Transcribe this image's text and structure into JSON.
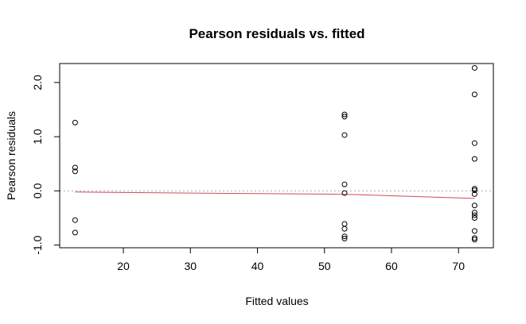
{
  "chart_data": {
    "type": "scatter",
    "title": "Pearson residuals vs. fitted",
    "xlabel": "Fitted values",
    "ylabel": "Pearson residuals",
    "xlim": [
      10.5,
      75.2
    ],
    "ylim": [
      -1.05,
      2.35
    ],
    "xticks": [
      20,
      30,
      40,
      50,
      60,
      70
    ],
    "xtick_labels": [
      "20",
      "30",
      "40",
      "50",
      "60",
      "70"
    ],
    "yticks": [
      -1.0,
      0.0,
      1.0,
      2.0
    ],
    "ytick_labels": [
      "-1.0",
      "0.0",
      "1.0",
      "2.0"
    ],
    "grid": false,
    "reference_line_y": 0,
    "points": [
      {
        "x": 12.8,
        "y": 1.26
      },
      {
        "x": 12.8,
        "y": 0.43
      },
      {
        "x": 12.8,
        "y": 0.36
      },
      {
        "x": 12.8,
        "y": -0.54
      },
      {
        "x": 12.8,
        "y": -0.77
      },
      {
        "x": 53.0,
        "y": 1.41
      },
      {
        "x": 53.0,
        "y": 1.37
      },
      {
        "x": 53.0,
        "y": 1.03
      },
      {
        "x": 53.0,
        "y": 0.12
      },
      {
        "x": 53.0,
        "y": -0.04
      },
      {
        "x": 53.0,
        "y": -0.61
      },
      {
        "x": 53.0,
        "y": -0.7
      },
      {
        "x": 53.0,
        "y": -0.84
      },
      {
        "x": 53.0,
        "y": -0.88
      },
      {
        "x": 72.4,
        "y": 2.27
      },
      {
        "x": 72.4,
        "y": 1.78
      },
      {
        "x": 72.4,
        "y": 0.88
      },
      {
        "x": 72.4,
        "y": 0.59
      },
      {
        "x": 72.4,
        "y": 0.04
      },
      {
        "x": 72.4,
        "y": 0.01
      },
      {
        "x": 72.4,
        "y": -0.06
      },
      {
        "x": 72.4,
        "y": -0.27
      },
      {
        "x": 72.4,
        "y": -0.4
      },
      {
        "x": 72.4,
        "y": -0.45
      },
      {
        "x": 72.4,
        "y": -0.5
      },
      {
        "x": 72.4,
        "y": -0.74
      },
      {
        "x": 72.4,
        "y": -0.87
      },
      {
        "x": 72.4,
        "y": -0.9
      }
    ],
    "smooth_line": [
      {
        "x": 12.8,
        "y": -0.02
      },
      {
        "x": 20.0,
        "y": -0.03
      },
      {
        "x": 30.0,
        "y": -0.04
      },
      {
        "x": 40.0,
        "y": -0.05
      },
      {
        "x": 50.0,
        "y": -0.06
      },
      {
        "x": 55.0,
        "y": -0.07
      },
      {
        "x": 60.0,
        "y": -0.09
      },
      {
        "x": 65.0,
        "y": -0.11
      },
      {
        "x": 72.4,
        "y": -0.14
      }
    ],
    "colors": {
      "points": "#000000",
      "smooth_line": "#d1495b",
      "reference_line": "#aaaaaa",
      "frame": "#000000"
    }
  }
}
